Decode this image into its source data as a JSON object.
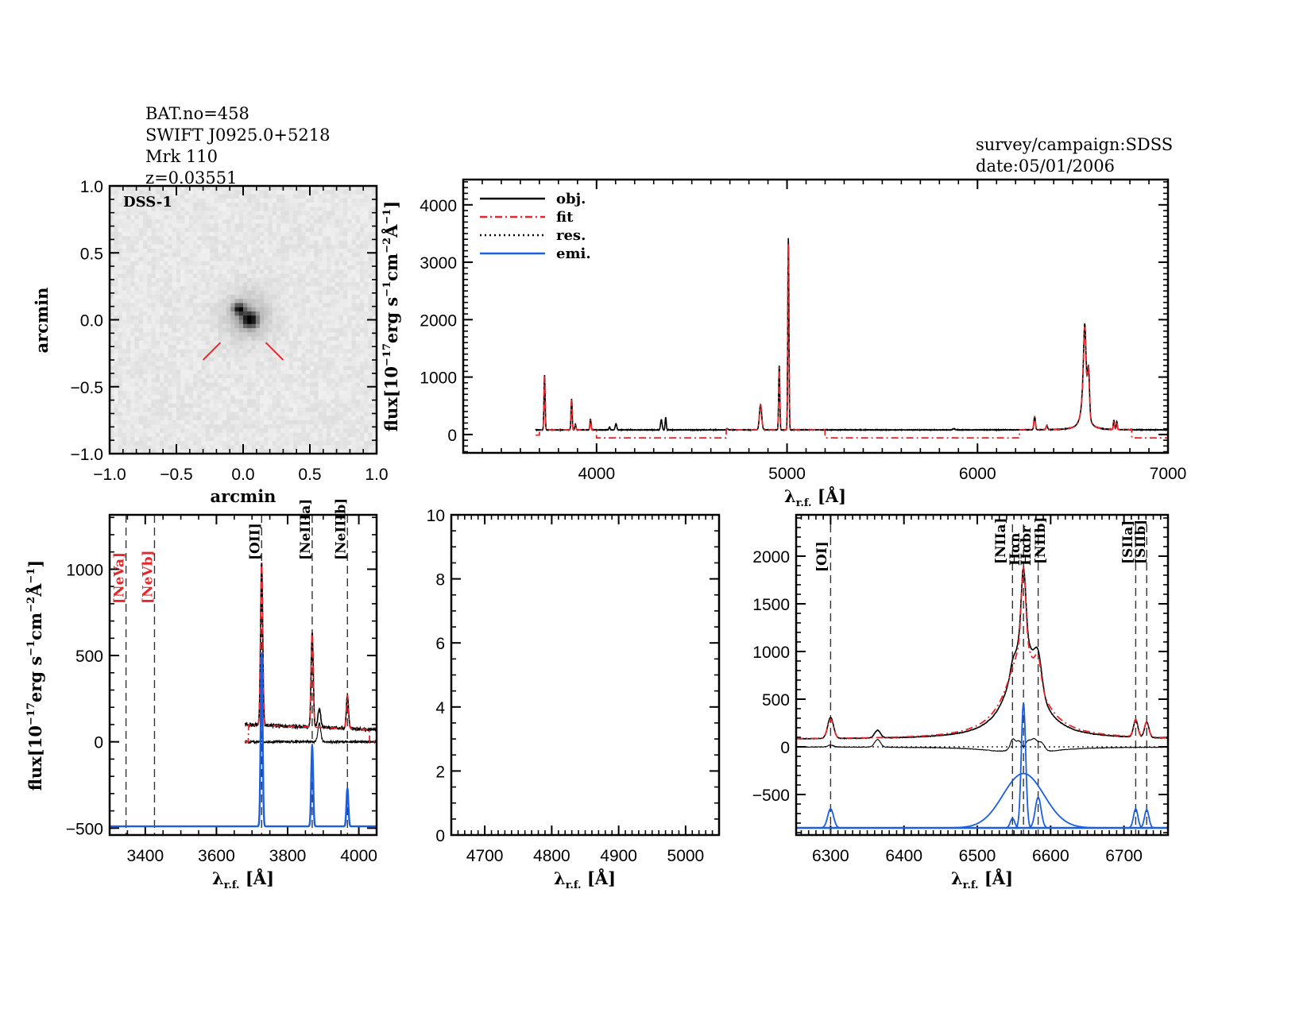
{
  "header": {
    "left_lines": [
      "BAT.no=458",
      "SWIFT J0925.0+5218",
      "Mrk 110",
      "z=0.03551"
    ],
    "right_lines": [
      "survey/campaign:SDSS",
      "date:05/01/2006"
    ]
  },
  "colors": {
    "obj": "#000000",
    "fit": "#e8262a",
    "res": "#000000",
    "emi": "#1a5fe0",
    "marker": "#e8262a"
  },
  "chart_data": [
    {
      "id": "image",
      "type": "heatmap",
      "title": "DSS-1",
      "xlabel": "arcmin",
      "ylabel": "arcmin",
      "xlim": [
        -1.0,
        1.0
      ],
      "ylim": [
        -1.0,
        1.0
      ],
      "xticks": [
        "-1.0",
        "-0.5",
        "0.0",
        "0.5",
        "1.0"
      ],
      "yticks": [
        "-1.0",
        "-0.5",
        "0.0",
        "0.5",
        "1.0"
      ],
      "xtick_values": [
        -1.0,
        -0.5,
        0.0,
        0.5,
        1.0
      ],
      "ytick_values": [
        -1.0,
        -0.5,
        0.0,
        0.5,
        1.0
      ],
      "source_center": [
        0.03,
        0.03
      ],
      "markers": [
        [
          [
            -0.3,
            -0.3
          ],
          [
            -0.17,
            -0.17
          ]
        ],
        [
          [
            0.17,
            -0.17
          ],
          [
            0.3,
            -0.3
          ]
        ]
      ]
    },
    {
      "id": "full-spectrum",
      "type": "line",
      "xlabel": "λr.f. [Å]",
      "ylabel": "flux[10^-17 erg s^-1 cm^-2 Å^-1]",
      "xlim": [
        3300,
        7000
      ],
      "ylim": [
        -320,
        4440
      ],
      "xticks": [
        4000,
        5000,
        6000,
        7000
      ],
      "yticks": [
        0,
        1000,
        2000,
        3000,
        4000
      ],
      "legend": {
        "position": "top-left",
        "entries": [
          {
            "name": "obj.",
            "style": "solid",
            "color_key": "obj"
          },
          {
            "name": "fit",
            "style": "dashdot",
            "color_key": "fit"
          },
          {
            "name": "res.",
            "style": "dotted",
            "color_key": "res"
          },
          {
            "name": "emi.",
            "style": "solid",
            "color_key": "emi"
          }
        ]
      },
      "continuum": 80,
      "range": [
        3680,
        7000
      ],
      "lines": [
        {
          "x": 3727,
          "peak": 1040,
          "w": 3
        },
        {
          "x": 3869,
          "peak": 620,
          "w": 3
        },
        {
          "x": 3889,
          "peak": 180,
          "w": 3
        },
        {
          "x": 3968,
          "peak": 270,
          "w": 3
        },
        {
          "x": 4068,
          "peak": 130,
          "w": 3
        },
        {
          "x": 4102,
          "peak": 190,
          "w": 4
        },
        {
          "x": 4340,
          "peak": 260,
          "w": 4
        },
        {
          "x": 4363,
          "peak": 300,
          "w": 3
        },
        {
          "x": 4686,
          "peak": 100,
          "w": 5
        },
        {
          "x": 4861,
          "peak": 520,
          "w": 6
        },
        {
          "x": 4959,
          "peak": 1200,
          "w": 3
        },
        {
          "x": 5007,
          "peak": 3420,
          "w": 3
        },
        {
          "x": 5876,
          "peak": 100,
          "w": 6
        },
        {
          "x": 6300,
          "peak": 310,
          "w": 4
        },
        {
          "x": 6364,
          "peak": 150,
          "w": 4
        },
        {
          "x": 6563,
          "peak": 1930,
          "w": 5
        },
        {
          "x": 6583,
          "peak": 810,
          "w": 5
        },
        {
          "x": 6716,
          "peak": 240,
          "w": 3
        },
        {
          "x": 6731,
          "peak": 220,
          "w": 3
        }
      ],
      "fit_gaps": [
        [
          3680,
          3700,
          -10
        ],
        [
          4000,
          4680,
          -60
        ],
        [
          5200,
          6220,
          -60
        ],
        [
          6810,
          7000,
          -60
        ]
      ]
    },
    {
      "id": "blue-zoom",
      "type": "line",
      "xlabel": "λr.f. [Å]",
      "ylabel": "flux[10^-17 erg s^-1 cm^-2 Å^-1]",
      "xlim": [
        3300,
        4050
      ],
      "ylim": [
        -540,
        1315
      ],
      "xticks": [
        3400,
        3600,
        3800,
        4000
      ],
      "yticks": [
        -500,
        0,
        500,
        1000
      ],
      "line_markers": [
        {
          "name": "[NeVa]",
          "x": 3346,
          "color_key": "fit"
        },
        {
          "name": "[NeVb]",
          "x": 3426,
          "color_key": "fit"
        },
        {
          "name": "[OII]",
          "x": 3727,
          "color_key": "obj"
        },
        {
          "name": "[NeIIIa]",
          "x": 3869,
          "color_key": "obj"
        },
        {
          "name": "[NeIIIb]",
          "x": 3968,
          "color_key": "obj"
        }
      ],
      "obj_continuum": 100,
      "range": [
        3680,
        4050
      ],
      "emi_base": -490,
      "peaks": [
        {
          "x": 3727,
          "obj": 1040,
          "emi": 520,
          "w": 3
        },
        {
          "x": 3869,
          "obj": 640,
          "emi": -20,
          "w": 3
        },
        {
          "x": 3889,
          "obj": 190,
          "emi": null,
          "w": 4
        },
        {
          "x": 3968,
          "obj": 270,
          "emi": -270,
          "w": 3
        }
      ]
    },
    {
      "id": "hbeta-zoom",
      "type": "line",
      "xlabel": "λr.f. [Å]",
      "ylabel": "",
      "xlim": [
        4650,
        5050
      ],
      "ylim": [
        0,
        10
      ],
      "xticks": [
        4700,
        4800,
        4900,
        5000
      ],
      "yticks": [
        0,
        2,
        4,
        6,
        8,
        10
      ]
    },
    {
      "id": "halpha-zoom",
      "type": "line",
      "xlabel": "λr.f. [Å]",
      "ylabel": "",
      "xlim": [
        6253,
        6760
      ],
      "ylim": [
        -925,
        2433
      ],
      "xticks": [
        6300,
        6400,
        6500,
        6600,
        6700
      ],
      "yticks": [
        -500,
        0,
        500,
        1000,
        1500,
        2000
      ],
      "line_markers": [
        {
          "name": "[OI]",
          "x": 6300,
          "color_key": "obj"
        },
        {
          "name": "[NIIa]",
          "x": 6548,
          "color_key": "obj"
        },
        {
          "name": "Hαn",
          "x": 6563,
          "color_key": "obj"
        },
        {
          "name": "Hαbr",
          "x": 6563,
          "color_key": "obj"
        },
        {
          "name": "[NIIb]",
          "x": 6583,
          "color_key": "obj"
        },
        {
          "name": "[SIIa]",
          "x": 6716,
          "color_key": "obj"
        },
        {
          "name": "[SIIb]",
          "x": 6731,
          "color_key": "obj"
        }
      ],
      "obj_continuum": 80,
      "emi_base": -850,
      "emi_components": [
        {
          "x": 6300,
          "amp": 200,
          "w": 4
        },
        {
          "x": 6548,
          "amp": 100,
          "w": 3
        },
        {
          "x": 6563,
          "amp": 1310,
          "w": 3
        },
        {
          "x": 6563,
          "amp": 570,
          "w": 28
        },
        {
          "x": 6583,
          "amp": 320,
          "w": 4
        },
        {
          "x": 6716,
          "amp": 200,
          "w": 3
        },
        {
          "x": 6731,
          "amp": 190,
          "w": 3
        }
      ]
    }
  ]
}
